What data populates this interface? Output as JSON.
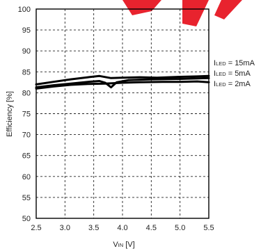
{
  "chart_data": {
    "type": "line",
    "xlabel_main": "V",
    "xlabel_sub": "IN",
    "xlabel_unit": " [V]",
    "ylabel": "Efficiency [%]",
    "xlim": [
      2.5,
      5.5
    ],
    "ylim": [
      50,
      100
    ],
    "x_ticks": [
      "2.5",
      "3.0",
      "3.5",
      "4.0",
      "4.5",
      "5.0",
      "5.5"
    ],
    "y_ticks": [
      "50",
      "55",
      "60",
      "65",
      "70",
      "75",
      "80",
      "85",
      "90",
      "95",
      "100"
    ],
    "grid": true,
    "legend_position": "right",
    "series": [
      {
        "label_main": "I",
        "label_sub": "LED",
        "label_rest": " = 15mA",
        "x": [
          2.5,
          2.8,
          3.1,
          3.4,
          3.6,
          3.8,
          4.0,
          4.3,
          4.6,
          5.0,
          5.3,
          5.5
        ],
        "y": [
          82.0,
          82.6,
          83.2,
          83.7,
          84.0,
          83.5,
          83.6,
          83.7,
          83.6,
          83.8,
          83.9,
          84.0
        ]
      },
      {
        "label_main": "I",
        "label_sub": "LED",
        "label_rest": " = 5mA",
        "x": [
          2.5,
          2.8,
          3.1,
          3.4,
          3.6,
          3.7,
          3.8,
          3.9,
          4.1,
          4.5,
          5.0,
          5.5
        ],
        "y": [
          81.3,
          81.8,
          82.2,
          82.6,
          82.8,
          82.4,
          81.3,
          82.5,
          83.0,
          83.2,
          83.3,
          83.5
        ]
      },
      {
        "label_main": "I",
        "label_sub": "LED",
        "label_rest": " = 2mA",
        "x": [
          2.5,
          2.8,
          3.1,
          3.4,
          3.7,
          4.0,
          4.3,
          4.7,
          5.0,
          5.3,
          5.5
        ],
        "y": [
          81.0,
          81.5,
          81.9,
          82.1,
          82.2,
          82.4,
          82.5,
          82.6,
          82.6,
          82.7,
          82.5
        ]
      }
    ]
  },
  "colors": {
    "line": "#000000",
    "watermark": "#e8232e"
  }
}
